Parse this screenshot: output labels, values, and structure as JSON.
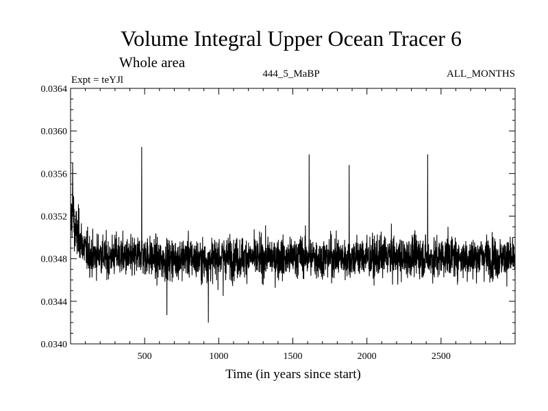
{
  "chart_data": {
    "type": "line",
    "title": "Volume Integral Upper Ocean Tracer 6",
    "subtitle": "Whole area",
    "expt_label": "Expt = teYJl",
    "period_label": "444_5_MaBP",
    "months_label": "ALL_MONTHS",
    "xlabel": "Time (in years since start)",
    "ylabel": "",
    "xlim": [
      0,
      3000
    ],
    "ylim": [
      0.034,
      0.0364
    ],
    "x_ticks": [
      500,
      1000,
      1500,
      2000,
      2500
    ],
    "x_tick_labels": [
      "500",
      "1000",
      "1500",
      "2000",
      "2500"
    ],
    "y_ticks": [
      0.034,
      0.0344,
      0.0348,
      0.0352,
      0.0356,
      0.036,
      0.0364
    ],
    "y_tick_labels": [
      "0.0340",
      "0.0344",
      "0.0348",
      "0.0352",
      "0.0356",
      "0.0360",
      "0.0364"
    ],
    "grid": false,
    "line_color": "#000000",
    "series": [
      {
        "name": "tracer6",
        "x": [
          0,
          15,
          30,
          60,
          100,
          150,
          200,
          250,
          300,
          350,
          400,
          450,
          480,
          500,
          550,
          600,
          650,
          700,
          750,
          800,
          850,
          900,
          950,
          1000,
          1050,
          1100,
          1150,
          1200,
          1250,
          1300,
          1350,
          1400,
          1450,
          1500,
          1550,
          1600,
          1650,
          1700,
          1750,
          1800,
          1850,
          1900,
          1950,
          2000,
          2050,
          2100,
          2150,
          2200,
          2250,
          2300,
          2350,
          2400,
          2450,
          2500,
          2550,
          2600,
          2650,
          2700,
          2750,
          2800,
          2850,
          2900,
          2950,
          3000
        ],
        "y": [
          0.03512,
          0.0353,
          0.03505,
          0.035,
          0.03488,
          0.03482,
          0.03485,
          0.0348,
          0.03484,
          0.03482,
          0.0348,
          0.03482,
          0.03485,
          0.03483,
          0.03481,
          0.03478,
          0.03479,
          0.0348,
          0.03481,
          0.03482,
          0.03479,
          0.03478,
          0.03479,
          0.03481,
          0.03482,
          0.0348,
          0.03481,
          0.03482,
          0.0348,
          0.03481,
          0.03482,
          0.03481,
          0.0348,
          0.03481,
          0.03483,
          0.03482,
          0.03481,
          0.0348,
          0.03482,
          0.03481,
          0.0348,
          0.03481,
          0.03482,
          0.03481,
          0.0348,
          0.03482,
          0.03483,
          0.03481,
          0.0348,
          0.03482,
          0.03483,
          0.03481,
          0.0348,
          0.03481,
          0.03483,
          0.03482,
          0.03481,
          0.0348,
          0.03482,
          0.03483,
          0.03481,
          0.0348,
          0.03481,
          0.03478
        ]
      }
    ]
  }
}
